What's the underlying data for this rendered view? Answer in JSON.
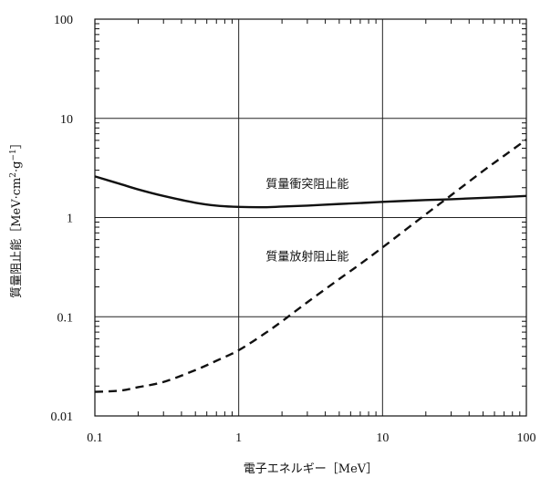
{
  "chart_data": {
    "type": "line",
    "xlabel": "電子エネルギー［MeV］",
    "ylabel_prefix": "質量阻止能［MeV·cm",
    "ylabel_sup1": "2",
    "ylabel_mid": "·g",
    "ylabel_sup2": "−1",
    "ylabel_suffix": "］",
    "x_scale": "log",
    "y_scale": "log",
    "xlim": [
      0.1,
      100
    ],
    "ylim": [
      0.01,
      100
    ],
    "grid": true,
    "x_ticks": [
      {
        "value": 0.1,
        "label": "0.1"
      },
      {
        "value": 1,
        "label": "1"
      },
      {
        "value": 10,
        "label": "10"
      },
      {
        "value": 100,
        "label": "100"
      }
    ],
    "y_ticks": [
      {
        "value": 0.01,
        "label": "0.01"
      },
      {
        "value": 0.1,
        "label": "0.1"
      },
      {
        "value": 1,
        "label": "1"
      },
      {
        "value": 10,
        "label": "10"
      },
      {
        "value": 100,
        "label": "100"
      }
    ],
    "series": [
      {
        "label": "質量衝突阻止能",
        "line_style": "solid",
        "label_at": [
          3.0,
          2.0
        ],
        "x": [
          0.1,
          0.15,
          0.2,
          0.3,
          0.5,
          0.7,
          1,
          1.5,
          2,
          3,
          5,
          7,
          10,
          20,
          30,
          50,
          70,
          100
        ],
        "y": [
          2.6,
          2.18,
          1.92,
          1.65,
          1.41,
          1.32,
          1.28,
          1.27,
          1.29,
          1.32,
          1.37,
          1.4,
          1.44,
          1.5,
          1.53,
          1.58,
          1.61,
          1.65
        ]
      },
      {
        "label": "質量放射阻止能",
        "line_style": "dashed",
        "label_at": [
          3.0,
          0.37
        ],
        "x": [
          0.1,
          0.15,
          0.2,
          0.3,
          0.5,
          0.7,
          1,
          1.5,
          2,
          3,
          5,
          7,
          10,
          20,
          30,
          50,
          70,
          100
        ],
        "y": [
          0.0175,
          0.018,
          0.0195,
          0.022,
          0.029,
          0.036,
          0.046,
          0.067,
          0.09,
          0.14,
          0.24,
          0.34,
          0.5,
          1.08,
          1.68,
          2.95,
          4.2,
          6.1
        ]
      }
    ]
  }
}
